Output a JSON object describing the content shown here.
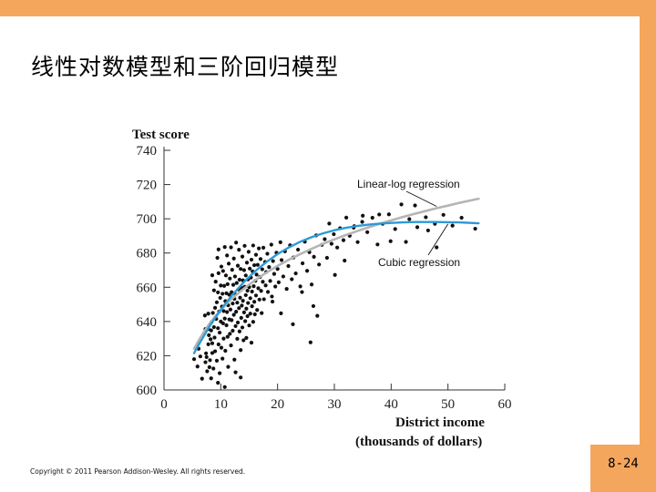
{
  "slide": {
    "title": "线性对数模型和三阶回归模型",
    "copyright": "Copyright © 2011 Pearson Addison-Wesley. All rights reserved.",
    "page_number": "8-24"
  },
  "colors": {
    "frame": "#f4a65c",
    "linear_log": "#b5b5b5",
    "cubic": "#2d9ad6",
    "points": "#111111"
  },
  "chart_data": {
    "type": "scatter",
    "title": "",
    "ylabel": "Test score",
    "xlabel_line1": "District income",
    "xlabel_line2": "(thousands of dollars)",
    "xlim": [
      0,
      60
    ],
    "ylim": [
      600,
      740
    ],
    "xticks": [
      0,
      10,
      20,
      30,
      40,
      50,
      60
    ],
    "yticks": [
      600,
      620,
      640,
      660,
      680,
      700,
      720,
      740
    ],
    "annotations": {
      "linear_log": "Linear-log regression",
      "cubic": "Cubic regression"
    },
    "series": [
      {
        "name": "Linear-log regression",
        "kind": "line",
        "x": [
          5.3,
          6,
          7,
          8,
          9,
          10,
          11,
          12,
          13,
          14,
          15,
          16,
          17,
          18,
          19,
          20,
          22,
          24,
          26,
          28,
          30,
          32,
          34,
          36,
          38,
          40,
          42,
          44,
          46,
          48,
          50,
          52,
          55.4
        ],
        "y": [
          624.1,
          628.3,
          633.8,
          638.7,
          642.9,
          646.7,
          650.2,
          653.4,
          656.3,
          659.0,
          661.6,
          664.0,
          666.3,
          668.5,
          670.5,
          672.5,
          676.1,
          679.4,
          682.5,
          685.4,
          688.0,
          690.5,
          692.8,
          695.0,
          697.1,
          699.1,
          701.0,
          702.8,
          704.5,
          706.2,
          707.7,
          709.3,
          711.7
        ]
      },
      {
        "name": "Cubic regression",
        "kind": "line",
        "x": [
          5.3,
          6,
          8,
          10,
          12,
          14,
          16,
          18,
          20,
          22,
          24,
          26,
          28,
          30,
          32,
          34,
          36,
          38,
          40,
          42,
          44,
          46,
          48,
          50,
          52,
          55.4
        ],
        "y": [
          621.5,
          625.8,
          637.1,
          646.9,
          655.4,
          662.8,
          669.2,
          674.7,
          679.4,
          683.3,
          686.6,
          689.3,
          691.5,
          693.3,
          694.7,
          695.8,
          696.6,
          697.2,
          697.6,
          697.9,
          698.1,
          698.1,
          698.1,
          698.0,
          697.9,
          697.4
        ]
      },
      {
        "name": "Districts",
        "kind": "scatter",
        "points": [
          [
            5.3,
            618.0
          ],
          [
            5.9,
            613.7
          ],
          [
            6.1,
            624.1
          ],
          [
            6.4,
            619.6
          ],
          [
            6.7,
            606.6
          ],
          [
            7.2,
            643.5
          ],
          [
            7.3,
            616.2
          ],
          [
            7.3,
            635.6
          ],
          [
            7.4,
            621.4
          ],
          [
            7.5,
            619.2
          ],
          [
            7.6,
            610.9
          ],
          [
            7.8,
            626.7
          ],
          [
            7.8,
            635.6
          ],
          [
            7.8,
            644.6
          ],
          [
            7.9,
            632.0
          ],
          [
            8.0,
            613.3
          ],
          [
            8.1,
            617.4
          ],
          [
            8.2,
            629.6
          ],
          [
            8.3,
            634.8
          ],
          [
            8.4,
            639.7
          ],
          [
            8.5,
            621.6
          ],
          [
            8.5,
            627.3
          ],
          [
            8.6,
            645.0
          ],
          [
            8.7,
            612.5
          ],
          [
            8.8,
            636.7
          ],
          [
            8.8,
            658.2
          ],
          [
            8.9,
            630.6
          ],
          [
            9.0,
            622.6
          ],
          [
            9.0,
            648.0
          ],
          [
            9.1,
            663.3
          ],
          [
            9.2,
            641.5
          ],
          [
            9.3,
            617.1
          ],
          [
            9.3,
            651.2
          ],
          [
            9.4,
            677.2
          ],
          [
            9.5,
            636.1
          ],
          [
            9.5,
            657.0
          ],
          [
            9.6,
            626.6
          ],
          [
            9.6,
            668.2
          ],
          [
            9.7,
            645.8
          ],
          [
            9.8,
            609.8
          ],
          [
            9.8,
            633.5
          ],
          [
            9.9,
            653.8
          ],
          [
            10.0,
            640.0
          ],
          [
            10.0,
            661.0
          ],
          [
            10.1,
            624.7
          ],
          [
            10.1,
            672.1
          ],
          [
            10.2,
            648.7
          ],
          [
            10.3,
            618.3
          ],
          [
            10.3,
            656.2
          ],
          [
            10.4,
            638.9
          ],
          [
            10.4,
            669.5
          ],
          [
            10.5,
            646.1
          ],
          [
            10.5,
            630.0
          ],
          [
            10.6,
            660.8
          ],
          [
            10.7,
            641.7
          ],
          [
            10.7,
            683.5
          ],
          [
            10.8,
            651.9
          ],
          [
            10.8,
            622.9
          ],
          [
            10.9,
            666.9
          ],
          [
            11.0,
            637.8
          ],
          [
            11.0,
            656.5
          ],
          [
            11.1,
            645.5
          ],
          [
            11.1,
            678.6
          ],
          [
            11.2,
            631.1
          ],
          [
            11.2,
            661.8
          ],
          [
            11.3,
            649.5
          ],
          [
            11.3,
            613.5
          ],
          [
            11.4,
            673.8
          ],
          [
            11.5,
            641.2
          ],
          [
            11.5,
            655.6
          ],
          [
            11.6,
            632.8
          ],
          [
            11.6,
            665.1
          ],
          [
            11.7,
            647.0
          ],
          [
            11.8,
            683.3
          ],
          [
            11.8,
            626.0
          ],
          [
            11.9,
            657.1
          ],
          [
            11.9,
            640.8
          ],
          [
            12.0,
            670.2
          ],
          [
            12.1,
            650.5
          ],
          [
            12.1,
            634.6
          ],
          [
            12.2,
            661.4
          ],
          [
            12.3,
            643.9
          ],
          [
            12.3,
            676.8
          ],
          [
            12.4,
            653.2
          ],
          [
            12.4,
            617.7
          ],
          [
            12.5,
            666.3
          ],
          [
            12.6,
            637.3
          ],
          [
            12.6,
            655.8
          ],
          [
            12.7,
            645.7
          ],
          [
            12.7,
            686.1
          ],
          [
            12.8,
            662.5
          ],
          [
            12.9,
            629.9
          ],
          [
            12.9,
            651.0
          ],
          [
            13.0,
            672.6
          ],
          [
            13.0,
            639.4
          ],
          [
            13.1,
            658.8
          ],
          [
            13.2,
            647.8
          ],
          [
            13.2,
            681.9
          ],
          [
            13.3,
            634.2
          ],
          [
            13.3,
            664.4
          ],
          [
            13.4,
            653.9
          ],
          [
            13.5,
            623.3
          ],
          [
            13.5,
            670.7
          ],
          [
            13.6,
            642.1
          ],
          [
            13.6,
            659.7
          ],
          [
            13.7,
            649.3
          ],
          [
            13.8,
            677.9
          ],
          [
            13.8,
            636.5
          ],
          [
            13.9,
            664.0
          ],
          [
            13.9,
            652.1
          ],
          [
            14.0,
            629.0
          ],
          [
            14.1,
            670.0
          ],
          [
            14.1,
            645.3
          ],
          [
            14.2,
            660.3
          ],
          [
            14.2,
            684.2
          ],
          [
            14.3,
            640.2
          ],
          [
            14.4,
            655.4
          ],
          [
            14.4,
            666.9
          ],
          [
            14.5,
            647.5
          ],
          [
            14.5,
            630.4
          ],
          [
            14.6,
            674.4
          ],
          [
            14.7,
            658.0
          ],
          [
            14.7,
            643.1
          ],
          [
            14.8,
            664.6
          ],
          [
            14.8,
            650.8
          ],
          [
            14.9,
            680.7
          ],
          [
            15.0,
            637.7
          ],
          [
            15.0,
            660.1
          ],
          [
            15.1,
            670.9
          ],
          [
            15.2,
            653.6
          ],
          [
            15.2,
            644.6
          ],
          [
            15.3,
            665.7
          ],
          [
            15.4,
            627.6
          ],
          [
            15.4,
            676.1
          ],
          [
            15.5,
            657.5
          ],
          [
            15.5,
            648.9
          ],
          [
            15.6,
            669.3
          ],
          [
            15.7,
            639.8
          ],
          [
            15.7,
            684.4
          ],
          [
            15.8,
            660.6
          ],
          [
            15.9,
            651.5
          ],
          [
            15.9,
            672.9
          ],
          [
            16.0,
            644.2
          ],
          [
            16.1,
            663.8
          ],
          [
            16.2,
            679.0
          ],
          [
            16.2,
            655.2
          ],
          [
            16.3,
            667.4
          ],
          [
            16.4,
            646.7
          ],
          [
            16.5,
            673.1
          ],
          [
            16.6,
            659.4
          ],
          [
            16.7,
            682.7
          ],
          [
            16.8,
            652.8
          ],
          [
            16.9,
            666.0
          ],
          [
            17.0,
            676.5
          ],
          [
            17.1,
            657.9
          ],
          [
            17.2,
            644.9
          ],
          [
            17.3,
            670.5
          ],
          [
            17.4,
            663.2
          ],
          [
            17.5,
            683.1
          ],
          [
            17.6,
            653.0
          ],
          [
            17.8,
            674.8
          ],
          [
            17.9,
            661.1
          ],
          [
            18.0,
            668.9
          ],
          [
            18.2,
            679.6
          ],
          [
            18.3,
            657.3
          ],
          [
            18.5,
            671.8
          ],
          [
            18.7,
            663.7
          ],
          [
            18.9,
            684.9
          ],
          [
            19.0,
            654.6
          ],
          [
            19.2,
            675.3
          ],
          [
            19.4,
            667.8
          ],
          [
            19.6,
            660.4
          ],
          [
            19.8,
            680.2
          ],
          [
            20.0,
            670.7
          ],
          [
            20.2,
            662.9
          ],
          [
            20.5,
            686.3
          ],
          [
            20.7,
            675.9
          ],
          [
            21.0,
            666.3
          ],
          [
            21.3,
            681.0
          ],
          [
            21.6,
            659.0
          ],
          [
            21.9,
            672.4
          ],
          [
            22.2,
            684.5
          ],
          [
            22.5,
            664.7
          ],
          [
            22.8,
            677.4
          ],
          [
            23.2,
            668.1
          ],
          [
            23.6,
            682.0
          ],
          [
            24.0,
            660.5
          ],
          [
            24.4,
            674.0
          ],
          [
            24.8,
            686.6
          ],
          [
            25.2,
            669.6
          ],
          [
            25.6,
            680.5
          ],
          [
            26.0,
            661.6
          ],
          [
            26.4,
            677.8
          ],
          [
            26.8,
            690.3
          ],
          [
            27.3,
            673.3
          ],
          [
            27.8,
            684.8
          ],
          [
            28.3,
            688.1
          ],
          [
            28.7,
            677.2
          ],
          [
            29.1,
            697.2
          ],
          [
            29.5,
            685.4
          ],
          [
            29.9,
            691.0
          ],
          [
            30.5,
            683.2
          ],
          [
            31.0,
            694.5
          ],
          [
            31.6,
            687.5
          ],
          [
            32.1,
            700.7
          ],
          [
            32.7,
            690.1
          ],
          [
            33.4,
            694.8
          ],
          [
            34.1,
            686.4
          ],
          [
            34.9,
            698.2
          ],
          [
            35.8,
            692.2
          ],
          [
            36.7,
            700.6
          ],
          [
            37.6,
            685.0
          ],
          [
            38.5,
            697.1
          ],
          [
            39.6,
            702.6
          ],
          [
            40.7,
            694.0
          ],
          [
            41.8,
            708.4
          ],
          [
            43.2,
            699.8
          ],
          [
            44.6,
            695.1
          ],
          [
            46.1,
            700.9
          ],
          [
            47.7,
            697.1
          ],
          [
            49.2,
            702.3
          ],
          [
            50.8,
            696.0
          ],
          [
            52.4,
            700.6
          ],
          [
            54.8,
            694.2
          ],
          [
            24.3,
            657.2
          ],
          [
            26.3,
            649.0
          ],
          [
            19.1,
            651.6
          ],
          [
            8.3,
            606.8
          ],
          [
            9.5,
            604.2
          ],
          [
            10.7,
            601.7
          ],
          [
            12.6,
            610.3
          ],
          [
            13.5,
            607.3
          ],
          [
            8.5,
            667.0
          ],
          [
            9.6,
            682.1
          ],
          [
            20.6,
            644.8
          ],
          [
            22.7,
            638.4
          ],
          [
            25.8,
            627.8
          ],
          [
            30.1,
            667.2
          ],
          [
            27.0,
            643.3
          ],
          [
            31.8,
            675.6
          ],
          [
            42.6,
            686.5
          ],
          [
            48.0,
            683.3
          ],
          [
            39.9,
            686.9
          ],
          [
            44.2,
            707.8
          ],
          [
            37.9,
            702.5
          ],
          [
            33.5,
            695.7
          ],
          [
            35.0,
            701.8
          ],
          [
            46.5,
            693.2
          ]
        ]
      }
    ]
  }
}
